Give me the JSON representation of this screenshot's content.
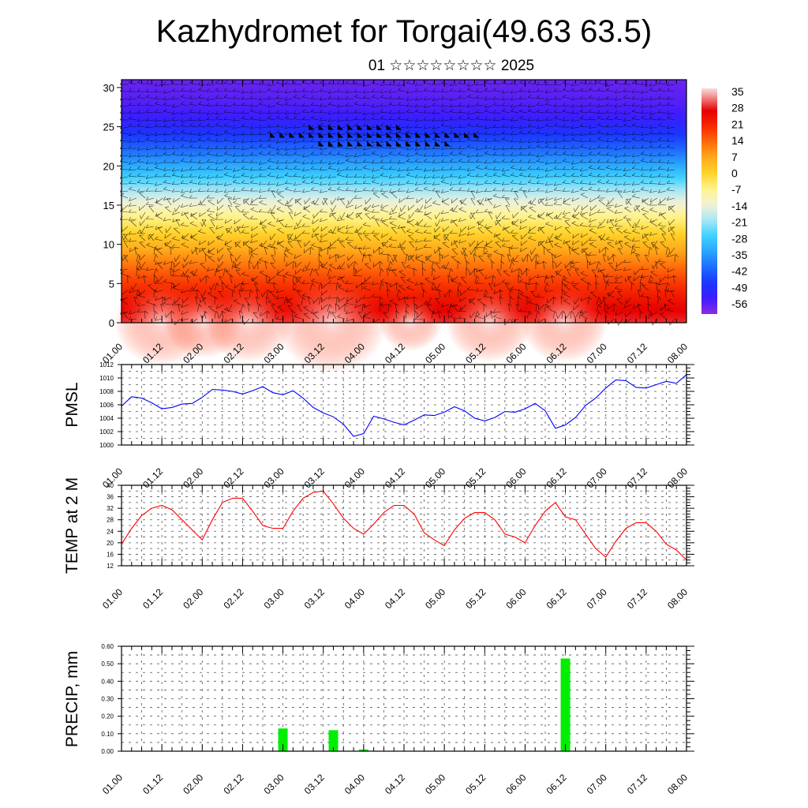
{
  "title": "Kazhydromet for Torgai(49.63 63.5)",
  "subtitle": "01 ☆☆☆☆☆☆☆☆ 2025",
  "time_ticks": [
    "01.00",
    "01.12",
    "02.00",
    "02.12",
    "03.00",
    "03.12",
    "04.00",
    "04.12",
    "05.00",
    "05.12",
    "06.00",
    "06.12",
    "07.00",
    "07.12",
    "08.00"
  ],
  "colors": {
    "pmsl_line": "#0000ff",
    "temp_line": "#ff0000",
    "precip_bar": "#00ee00"
  },
  "chart_data": [
    {
      "type": "heatmap",
      "title": "",
      "xlabel": "",
      "ylabel": "",
      "yticks": [
        0,
        5,
        10,
        15,
        20,
        25,
        30
      ],
      "ylim": [
        0,
        31
      ],
      "colorbar": {
        "labels": [
          "35",
          "28",
          "21",
          "14",
          "7",
          "0",
          "-7",
          "-14",
          "-21",
          "-28",
          "-35",
          "-42",
          "-49",
          "-56"
        ],
        "range": [
          -63,
          38
        ]
      },
      "profile_height": [
        0,
        2,
        4,
        6,
        8,
        10,
        12,
        14,
        16,
        18,
        20,
        22,
        24,
        26,
        28,
        31
      ],
      "profile_temp": [
        30,
        27,
        22,
        17,
        11,
        5,
        -2,
        -9,
        -17,
        -26,
        -34,
        -42,
        -49,
        -55,
        -58,
        -60
      ],
      "wind_barbs": true
    },
    {
      "type": "line",
      "ylabel": "PMSL",
      "ylim": [
        1000,
        1012
      ],
      "yticks": [
        "1000",
        "1002",
        "1004",
        "1006",
        "1008",
        "1010",
        "1012"
      ],
      "grid": true,
      "x": [
        0,
        3,
        6,
        9,
        12,
        15,
        18,
        21,
        24,
        27,
        30,
        33,
        36,
        39,
        42,
        45,
        48,
        51,
        54,
        57,
        60,
        63,
        66,
        69,
        72,
        75,
        78,
        81,
        84,
        87,
        90,
        93,
        96,
        99,
        102,
        105,
        108,
        111,
        114,
        117,
        120,
        123,
        126,
        129,
        132,
        135,
        138,
        141,
        144,
        147,
        150,
        153,
        156,
        159,
        162,
        165,
        168
      ],
      "values": [
        1005.8,
        1007.2,
        1007.0,
        1006.3,
        1005.4,
        1005.6,
        1006.1,
        1006.2,
        1007.1,
        1008.3,
        1008.2,
        1008.0,
        1007.6,
        1008.1,
        1008.7,
        1007.8,
        1007.5,
        1008.1,
        1007.0,
        1005.6,
        1004.8,
        1004.2,
        1003.1,
        1001.3,
        1001.7,
        1004.3,
        1003.9,
        1003.4,
        1003.0,
        1003.7,
        1004.5,
        1004.4,
        1004.9,
        1005.7,
        1005.1,
        1004.0,
        1003.6,
        1004.1,
        1005.0,
        1004.9,
        1005.4,
        1006.2,
        1005.1,
        1002.5,
        1003.0,
        1004.1,
        1005.9,
        1007.0,
        1008.5,
        1009.7,
        1009.6,
        1008.6,
        1008.5,
        1009.0,
        1009.5,
        1009.2,
        1010.5
      ]
    },
    {
      "type": "line",
      "ylabel": "TEMP at 2 M",
      "ylim": [
        12,
        40
      ],
      "yticks": [
        "12",
        "16",
        "20",
        "24",
        "28",
        "32",
        "36",
        "40"
      ],
      "grid": true,
      "x": [
        0,
        3,
        6,
        9,
        12,
        15,
        18,
        21,
        24,
        27,
        30,
        33,
        36,
        39,
        42,
        45,
        48,
        51,
        54,
        57,
        60,
        63,
        66,
        69,
        72,
        75,
        78,
        81,
        84,
        87,
        90,
        93,
        96,
        99,
        102,
        105,
        108,
        111,
        114,
        117,
        120,
        123,
        126,
        129,
        132,
        135,
        138,
        141,
        144,
        147,
        150,
        153,
        156,
        159,
        162,
        165,
        168
      ],
      "values": [
        19.5,
        25,
        29.5,
        32,
        33,
        31.5,
        28,
        24.5,
        21,
        28,
        34,
        35.5,
        35.5,
        31,
        26,
        25,
        25,
        31,
        35.5,
        37.5,
        38,
        33.5,
        28.5,
        25,
        23,
        26.5,
        30.5,
        33,
        33,
        30,
        23.5,
        21,
        19,
        24.5,
        28.5,
        30.5,
        30.5,
        28,
        23,
        22,
        20,
        26,
        31,
        34,
        29,
        28,
        23,
        18,
        15,
        20.5,
        25,
        27,
        27,
        24,
        19.5,
        17.5,
        14
      ]
    },
    {
      "type": "bar",
      "ylabel": "PRECIP, mm",
      "ylim": [
        0,
        0.6
      ],
      "yticks": [
        "0.00",
        "0.10",
        "0.20",
        "0.30",
        "0.40",
        "0.50",
        "0.60"
      ],
      "grid": true,
      "x": [
        48,
        63,
        72,
        132
      ],
      "values": [
        0.13,
        0.12,
        0.01,
        0.53
      ]
    }
  ]
}
